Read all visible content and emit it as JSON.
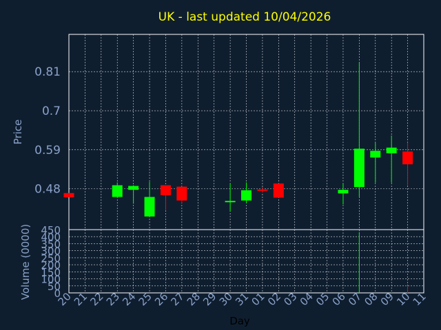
{
  "chart_data": {
    "type": "candlestick",
    "title": "UK - last updated 10/04/2026",
    "xlabel": "Day",
    "ylabel": "Price",
    "volume_label": "Volume (0000)",
    "x_ticks": [
      "20",
      "21",
      "22",
      "23",
      "24",
      "25",
      "26",
      "27",
      "28",
      "29",
      "30",
      "31",
      "01",
      "02",
      "03",
      "04",
      "05",
      "06",
      "07",
      "08",
      "09",
      "10",
      "11"
    ],
    "price_ticks": [
      0.48,
      0.59,
      0.7,
      0.81
    ],
    "price_ylim": [
      0.365,
      0.915
    ],
    "volume_ticks": [
      0,
      50,
      100,
      150,
      200,
      250,
      300,
      350,
      400,
      450
    ],
    "volume_ylim": [
      0,
      450
    ],
    "up_color": "#00ff00",
    "down_color": "#ff0000",
    "grid": true,
    "candles": [
      {
        "x": 0,
        "open": 0.468,
        "high": 0.468,
        "low": 0.456,
        "close": 0.456,
        "volume": 0
      },
      {
        "x": 3,
        "open": 0.457,
        "high": 0.498,
        "low": 0.457,
        "close": 0.49,
        "volume": 0
      },
      {
        "x": 4,
        "open": 0.477,
        "high": 0.49,
        "low": 0.438,
        "close": 0.488,
        "volume": 0
      },
      {
        "x": 5,
        "open": 0.402,
        "high": 0.5,
        "low": 0.402,
        "close": 0.457,
        "volume": 0
      },
      {
        "x": 6,
        "open": 0.49,
        "high": 0.49,
        "low": 0.42,
        "close": 0.462,
        "volume": 0
      },
      {
        "x": 7,
        "open": 0.486,
        "high": 0.486,
        "low": 0.44,
        "close": 0.447,
        "volume": 0
      },
      {
        "x": 10,
        "open": 0.443,
        "high": 0.495,
        "low": 0.416,
        "close": 0.446,
        "volume": 0
      },
      {
        "x": 11,
        "open": 0.447,
        "high": 0.498,
        "low": 0.44,
        "close": 0.476,
        "volume": 0
      },
      {
        "x": 12,
        "open": 0.478,
        "high": 0.485,
        "low": 0.47,
        "close": 0.475,
        "volume": 0
      },
      {
        "x": 13,
        "open": 0.495,
        "high": 0.495,
        "low": 0.455,
        "close": 0.455,
        "volume": 0
      },
      {
        "x": 17,
        "open": 0.467,
        "high": 0.495,
        "low": 0.436,
        "close": 0.477,
        "volume": 0
      },
      {
        "x": 18,
        "open": 0.485,
        "high": 0.836,
        "low": 0.458,
        "close": 0.593,
        "volume": 432
      },
      {
        "x": 19,
        "open": 0.568,
        "high": 0.61,
        "low": 0.497,
        "close": 0.587,
        "volume": 0
      },
      {
        "x": 20,
        "open": 0.58,
        "high": 0.63,
        "low": 0.497,
        "close": 0.596,
        "volume": 2
      },
      {
        "x": 21,
        "open": 0.585,
        "high": 0.61,
        "low": 0.49,
        "close": 0.549,
        "volume": 52
      }
    ]
  }
}
